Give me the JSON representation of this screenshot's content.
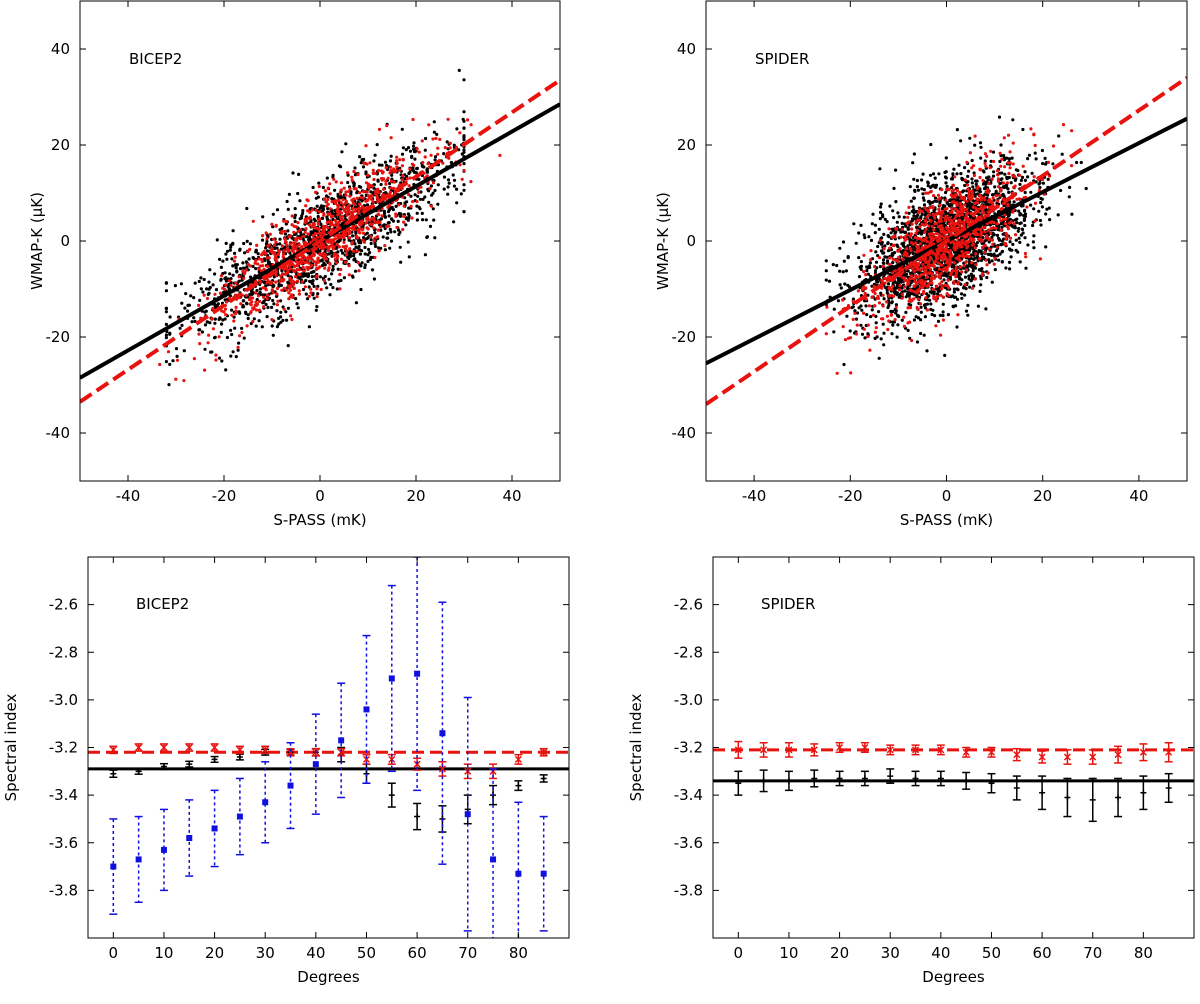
{
  "colors": {
    "black": "#000000",
    "red": "#e8120f",
    "blue": "#1010e0"
  },
  "chart_data": [
    {
      "id": "scatter-bicep2",
      "type": "scatter",
      "title": "BICEP2",
      "xlabel": "S-PASS (mK)",
      "ylabel": "WMAP-K (µK)",
      "xlim": [
        -50,
        50
      ],
      "ylim": [
        -50,
        50
      ],
      "xticks": [
        -40,
        -20,
        0,
        20,
        40
      ],
      "yticks": [
        -40,
        -20,
        0,
        20,
        40
      ],
      "xtick_labels": [
        "-40",
        "-20",
        "0",
        "20",
        "40"
      ],
      "ytick_labels": [
        "-40",
        "-20",
        "0",
        "20",
        "40"
      ],
      "fit_lines": [
        {
          "name": "black-fit",
          "style": "solid",
          "color": "black",
          "slope": 0.57,
          "intercept": 0.0
        },
        {
          "name": "red-fit",
          "style": "dashed",
          "color": "red",
          "slope": 0.67,
          "intercept": 0.0
        }
      ],
      "clouds": [
        {
          "name": "black-points",
          "color": "black",
          "n": 1500,
          "x_center": 0,
          "x_sd": 14,
          "x_range": [
            -32,
            30
          ],
          "slope": 0.57,
          "scatter_sd": 5.5,
          "seed": 11
        },
        {
          "name": "red-points",
          "color": "red",
          "n": 900,
          "x_center": 0,
          "x_sd": 11,
          "x_range": [
            -40,
            38
          ],
          "slope": 0.67,
          "scatter_sd": 4.5,
          "seed": 23
        }
      ]
    },
    {
      "id": "scatter-spider",
      "type": "scatter",
      "title": "SPIDER",
      "xlabel": "S-PASS (mK)",
      "ylabel": "WMAP-K (µK)",
      "xlim": [
        -50,
        50
      ],
      "ylim": [
        -50,
        50
      ],
      "xticks": [
        -40,
        -20,
        0,
        20,
        40
      ],
      "yticks": [
        -40,
        -20,
        0,
        20,
        40
      ],
      "xtick_labels": [
        "-40",
        "-20",
        "0",
        "20",
        "40"
      ],
      "ytick_labels": [
        "-40",
        "-20",
        "0",
        "20",
        "40"
      ],
      "fit_lines": [
        {
          "name": "black-fit",
          "style": "solid",
          "color": "black",
          "slope": 0.51,
          "intercept": 0.0
        },
        {
          "name": "red-fit",
          "style": "dashed",
          "color": "red",
          "slope": 0.68,
          "intercept": 0.0
        }
      ],
      "clouds": [
        {
          "name": "black-points",
          "color": "black",
          "n": 2200,
          "x_center": 0,
          "x_sd": 9,
          "x_range": [
            -25,
            31
          ],
          "slope": 0.51,
          "scatter_sd": 6.5,
          "seed": 37
        },
        {
          "name": "red-points",
          "color": "red",
          "n": 1000,
          "x_center": 0,
          "x_sd": 8,
          "x_range": [
            -25,
            26
          ],
          "slope": 0.68,
          "scatter_sd": 5.5,
          "seed": 53
        }
      ]
    },
    {
      "id": "index-bicep2",
      "type": "errorbar",
      "title": "BICEP2",
      "xlabel": "Degrees",
      "ylabel": "Spectral index",
      "xlim": [
        -5,
        90
      ],
      "ylim": [
        -4.0,
        -2.4
      ],
      "xticks": [
        0,
        10,
        20,
        30,
        40,
        50,
        60,
        70,
        80
      ],
      "yticks": [
        -3.8,
        -3.6,
        -3.4,
        -3.2,
        -3.0,
        -2.8,
        -2.6
      ],
      "xtick_labels": [
        "0",
        "10",
        "20",
        "30",
        "40",
        "50",
        "60",
        "70",
        "80"
      ],
      "ytick_labels": [
        "-3.8",
        "-3.6",
        "-3.4",
        "-3.2",
        "-3.0",
        "-2.8",
        "-2.6"
      ],
      "x": [
        0,
        5,
        10,
        15,
        20,
        25,
        30,
        35,
        40,
        45,
        50,
        55,
        60,
        65,
        70,
        75,
        80,
        85
      ],
      "hlines": [
        {
          "name": "black-mean",
          "y": -3.29,
          "color": "black",
          "style": "solid"
        },
        {
          "name": "red-mean",
          "y": -3.22,
          "color": "red",
          "style": "dashed"
        }
      ],
      "series": [
        {
          "name": "black",
          "color": "black",
          "marker": "plus",
          "dotted": false,
          "values": [
            -3.31,
            -3.3,
            -3.28,
            -3.27,
            -3.25,
            -3.24,
            -3.22,
            -3.22,
            -3.22,
            -3.23,
            -3.31,
            -3.4,
            -3.49,
            -3.5,
            -3.46,
            -3.4,
            -3.36,
            -3.33
          ],
          "errors": [
            0.015,
            0.012,
            0.012,
            0.012,
            0.012,
            0.012,
            0.012,
            0.012,
            0.015,
            0.03,
            0.04,
            0.05,
            0.055,
            0.055,
            0.06,
            0.04,
            0.02,
            0.015
          ]
        },
        {
          "name": "red",
          "color": "red",
          "marker": "x",
          "dotted": false,
          "values": [
            -3.21,
            -3.2,
            -3.2,
            -3.2,
            -3.2,
            -3.21,
            -3.21,
            -3.22,
            -3.22,
            -3.22,
            -3.25,
            -3.25,
            -3.27,
            -3.29,
            -3.3,
            -3.3,
            -3.25,
            -3.22
          ],
          "errors": [
            0.015,
            0.015,
            0.015,
            0.015,
            0.015,
            0.015,
            0.015,
            0.015,
            0.015,
            0.015,
            0.02,
            0.02,
            0.025,
            0.03,
            0.03,
            0.03,
            0.02,
            0.015
          ]
        },
        {
          "name": "blue",
          "color": "blue",
          "marker": "square",
          "dotted": true,
          "values": [
            -3.7,
            -3.67,
            -3.63,
            -3.58,
            -3.54,
            -3.49,
            -3.43,
            -3.36,
            -3.27,
            -3.17,
            -3.04,
            -2.91,
            -2.89,
            -3.14,
            -3.48,
            -3.67,
            -3.73,
            -3.73
          ],
          "errors": [
            0.2,
            0.18,
            0.17,
            0.16,
            0.16,
            0.16,
            0.17,
            0.18,
            0.21,
            0.24,
            0.31,
            0.39,
            0.49,
            0.55,
            0.49,
            0.38,
            0.3,
            0.24
          ]
        }
      ]
    },
    {
      "id": "index-spider",
      "type": "errorbar",
      "title": "SPIDER",
      "xlabel": "Degrees",
      "ylabel": "Spectral index",
      "xlim": [
        -5,
        90
      ],
      "ylim": [
        -4.0,
        -2.4
      ],
      "xticks": [
        0,
        10,
        20,
        30,
        40,
        50,
        60,
        70,
        80
      ],
      "yticks": [
        -3.8,
        -3.6,
        -3.4,
        -3.2,
        -3.0,
        -2.8,
        -2.6
      ],
      "xtick_labels": [
        "0",
        "10",
        "20",
        "30",
        "40",
        "50",
        "60",
        "70",
        "80"
      ],
      "ytick_labels": [
        "-3.8",
        "-3.6",
        "-3.4",
        "-3.2",
        "-3.0",
        "-2.8",
        "-2.6"
      ],
      "x": [
        0,
        5,
        10,
        15,
        20,
        25,
        30,
        35,
        40,
        45,
        50,
        55,
        60,
        65,
        70,
        75,
        80,
        85
      ],
      "hlines": [
        {
          "name": "black-mean",
          "y": -3.34,
          "color": "black",
          "style": "solid"
        },
        {
          "name": "red-mean",
          "y": -3.21,
          "color": "red",
          "style": "dashed"
        }
      ],
      "series": [
        {
          "name": "black",
          "color": "black",
          "marker": "plus",
          "dotted": false,
          "values": [
            -3.35,
            -3.34,
            -3.34,
            -3.33,
            -3.33,
            -3.33,
            -3.32,
            -3.33,
            -3.33,
            -3.34,
            -3.35,
            -3.37,
            -3.39,
            -3.41,
            -3.42,
            -3.41,
            -3.39,
            -3.37
          ],
          "errors": [
            0.05,
            0.045,
            0.04,
            0.035,
            0.03,
            0.03,
            0.03,
            0.03,
            0.03,
            0.035,
            0.04,
            0.05,
            0.07,
            0.08,
            0.09,
            0.08,
            0.07,
            0.06
          ]
        },
        {
          "name": "red",
          "color": "red",
          "marker": "x",
          "dotted": false,
          "values": [
            -3.21,
            -3.21,
            -3.21,
            -3.21,
            -3.2,
            -3.2,
            -3.21,
            -3.21,
            -3.21,
            -3.22,
            -3.22,
            -3.23,
            -3.24,
            -3.24,
            -3.24,
            -3.23,
            -3.22,
            -3.22
          ],
          "errors": [
            0.035,
            0.03,
            0.03,
            0.025,
            0.02,
            0.02,
            0.02,
            0.02,
            0.02,
            0.02,
            0.02,
            0.025,
            0.025,
            0.03,
            0.03,
            0.035,
            0.035,
            0.04
          ]
        }
      ]
    }
  ]
}
